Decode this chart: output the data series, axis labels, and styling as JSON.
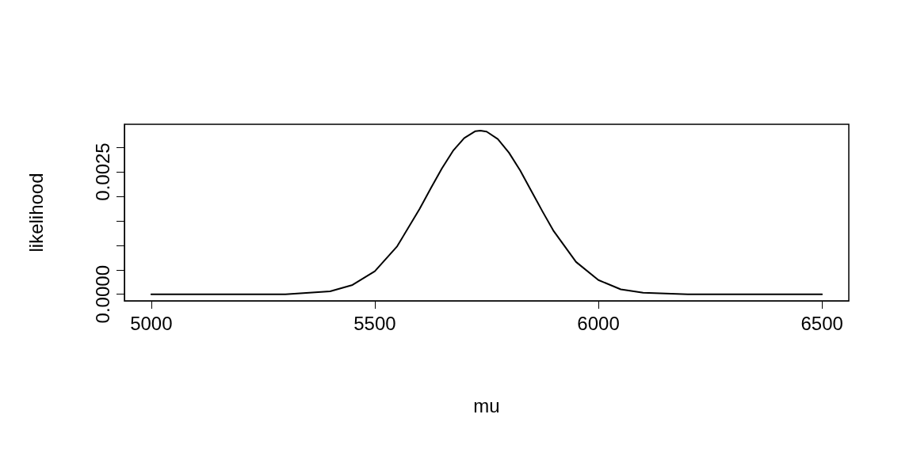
{
  "chart_data": {
    "type": "line",
    "xlabel": "mu",
    "ylabel": "likelihood",
    "x": [
      5000,
      5200,
      5300,
      5400,
      5450,
      5500,
      5550,
      5600,
      5625,
      5650,
      5675,
      5700,
      5725,
      5736,
      5750,
      5775,
      5800,
      5825,
      5850,
      5875,
      5900,
      5950,
      6000,
      6050,
      6100,
      6200,
      6500
    ],
    "series": [
      {
        "color": "#000000",
        "values": [
          0,
          0,
          0,
          6e-05,
          0.00019,
          0.00047,
          0.00098,
          0.00174,
          0.00216,
          0.00257,
          0.00293,
          0.00319,
          0.00333,
          0.00334,
          0.00332,
          0.00317,
          0.00289,
          0.00253,
          0.00211,
          0.00169,
          0.00129,
          0.00066,
          0.00029,
          0.0001,
          3e-05,
          0,
          0
        ]
      }
    ],
    "xlim": [
      4940,
      6560
    ],
    "xticks": [
      5000,
      5500,
      6000,
      6500
    ],
    "ylim": [
      -0.000134,
      0.00347
    ],
    "yticks": [
      {
        "value": 0,
        "label": "0.0000"
      },
      {
        "value": 0.0005,
        "label": null
      },
      {
        "value": 0.001,
        "label": null
      },
      {
        "value": 0.0015,
        "label": null
      },
      {
        "value": 0.002,
        "label": null
      },
      {
        "value": 0.0025,
        "label": "0.0025"
      },
      {
        "value": 0.003,
        "label": null
      }
    ],
    "grid": false,
    "marker": "none",
    "line_style": "solid"
  }
}
